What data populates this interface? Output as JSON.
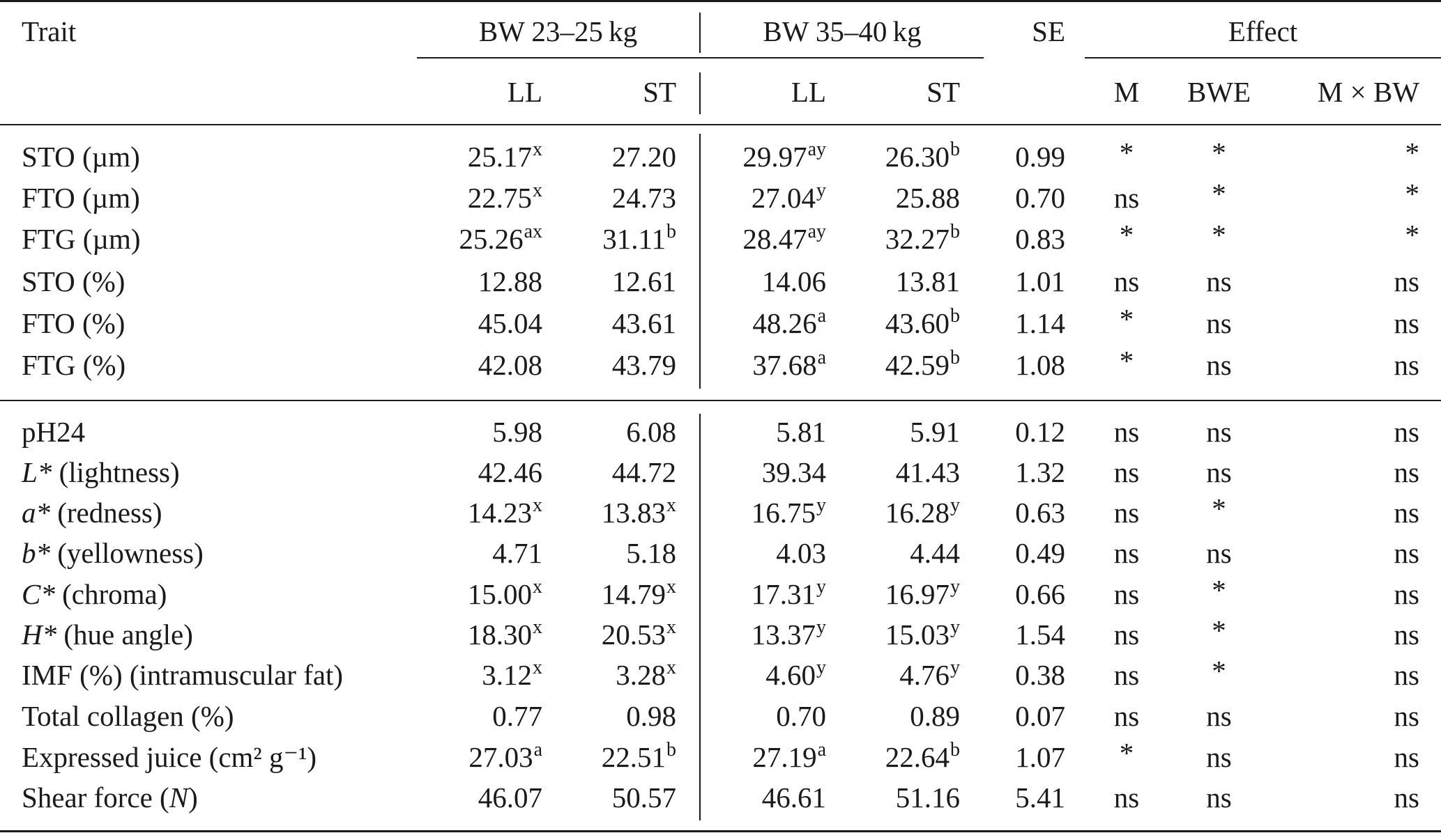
{
  "header": {
    "trait": "Trait",
    "group1": "BW 23–25 kg",
    "group2": "BW 35–40 kg",
    "se": "SE",
    "effect": "Effect",
    "sub": [
      "LL",
      "ST",
      "LL",
      "ST"
    ],
    "effects": [
      "M",
      "BWE",
      "M × BW"
    ]
  },
  "section1": [
    {
      "t": "STO (µm)",
      "ti": "",
      "tr": "",
      "v": [
        [
          "25.17",
          "x"
        ],
        [
          "27.20",
          ""
        ],
        [
          "29.97",
          "ay"
        ],
        [
          "26.30",
          "b"
        ]
      ],
      "se": "0.99",
      "e": [
        "*",
        "*",
        "*"
      ]
    },
    {
      "t": "FTO (µm)",
      "ti": "",
      "tr": "",
      "v": [
        [
          "22.75",
          "x"
        ],
        [
          "24.73",
          ""
        ],
        [
          "27.04",
          "y"
        ],
        [
          "25.88",
          ""
        ]
      ],
      "se": "0.70",
      "e": [
        "ns",
        "*",
        "*"
      ]
    },
    {
      "t": "FTG (µm)",
      "ti": "",
      "tr": "",
      "v": [
        [
          "25.26",
          "ax"
        ],
        [
          "31.11",
          "b"
        ],
        [
          "28.47",
          "ay"
        ],
        [
          "32.27",
          "b"
        ]
      ],
      "se": "0.83",
      "e": [
        "*",
        "*",
        "*"
      ]
    },
    {
      "t": "STO (%)",
      "ti": "",
      "tr": "",
      "v": [
        [
          "12.88",
          ""
        ],
        [
          "12.61",
          ""
        ],
        [
          "14.06",
          ""
        ],
        [
          "13.81",
          ""
        ]
      ],
      "se": "1.01",
      "e": [
        "ns",
        "ns",
        "ns"
      ]
    },
    {
      "t": "FTO (%)",
      "ti": "",
      "tr": "",
      "v": [
        [
          "45.04",
          ""
        ],
        [
          "43.61",
          ""
        ],
        [
          "48.26",
          "a"
        ],
        [
          "43.60",
          "b"
        ]
      ],
      "se": "1.14",
      "e": [
        "*",
        "ns",
        "ns"
      ]
    },
    {
      "t": "FTG (%)",
      "ti": "",
      "tr": "",
      "v": [
        [
          "42.08",
          ""
        ],
        [
          "43.79",
          ""
        ],
        [
          "37.68",
          "a"
        ],
        [
          "42.59",
          "b"
        ]
      ],
      "se": "1.08",
      "e": [
        "*",
        "ns",
        "ns"
      ]
    }
  ],
  "section2": [
    {
      "t": "pH24",
      "ti": "",
      "tr": "",
      "v": [
        [
          "5.98",
          ""
        ],
        [
          "6.08",
          ""
        ],
        [
          "5.81",
          ""
        ],
        [
          "5.91",
          ""
        ]
      ],
      "se": "0.12",
      "e": [
        "ns",
        "ns",
        "ns"
      ]
    },
    {
      "t": "",
      "ti": "L*",
      "tr": " (lightness)",
      "v": [
        [
          "42.46",
          ""
        ],
        [
          "44.72",
          ""
        ],
        [
          "39.34",
          ""
        ],
        [
          "41.43",
          ""
        ]
      ],
      "se": "1.32",
      "e": [
        "ns",
        "ns",
        "ns"
      ]
    },
    {
      "t": "",
      "ti": "a*",
      "tr": " (redness)",
      "v": [
        [
          "14.23",
          "x"
        ],
        [
          "13.83",
          "x"
        ],
        [
          "16.75",
          "y"
        ],
        [
          "16.28",
          "y"
        ]
      ],
      "se": "0.63",
      "e": [
        "ns",
        "*",
        "ns"
      ]
    },
    {
      "t": "",
      "ti": "b*",
      "tr": " (yellowness)",
      "v": [
        [
          "4.71",
          ""
        ],
        [
          "5.18",
          ""
        ],
        [
          "4.03",
          ""
        ],
        [
          "4.44",
          ""
        ]
      ],
      "se": "0.49",
      "e": [
        "ns",
        "ns",
        "ns"
      ]
    },
    {
      "t": "",
      "ti": "C*",
      "tr": " (chroma)",
      "v": [
        [
          "15.00",
          "x"
        ],
        [
          "14.79",
          "x"
        ],
        [
          "17.31",
          "y"
        ],
        [
          "16.97",
          "y"
        ]
      ],
      "se": "0.66",
      "e": [
        "ns",
        "*",
        "ns"
      ]
    },
    {
      "t": "",
      "ti": "H*",
      "tr": " (hue angle)",
      "v": [
        [
          "18.30",
          "x"
        ],
        [
          "20.53",
          "x"
        ],
        [
          "13.37",
          "y"
        ],
        [
          "15.03",
          "y"
        ]
      ],
      "se": "1.54",
      "e": [
        "ns",
        "*",
        "ns"
      ]
    },
    {
      "t": "IMF (%) (intramuscular fat)",
      "ti": "",
      "tr": "",
      "v": [
        [
          "3.12",
          "x"
        ],
        [
          "3.28",
          "x"
        ],
        [
          "4.60",
          "y"
        ],
        [
          "4.76",
          "y"
        ]
      ],
      "se": "0.38",
      "e": [
        "ns",
        "*",
        "ns"
      ]
    },
    {
      "t": "Total collagen (%)",
      "ti": "",
      "tr": "",
      "v": [
        [
          "0.77",
          ""
        ],
        [
          "0.98",
          ""
        ],
        [
          "0.70",
          ""
        ],
        [
          "0.89",
          ""
        ]
      ],
      "se": "0.07",
      "e": [
        "ns",
        "ns",
        "ns"
      ]
    },
    {
      "t": "Expressed juice (cm² g⁻¹)",
      "ti": "",
      "tr": "",
      "v": [
        [
          "27.03",
          "a"
        ],
        [
          "22.51",
          "b"
        ],
        [
          "27.19",
          "a"
        ],
        [
          "22.64",
          "b"
        ]
      ],
      "se": "1.07",
      "e": [
        "*",
        "ns",
        "ns"
      ]
    },
    {
      "t": "Shear force (",
      "ti": "N",
      "tr": ")",
      "v": [
        [
          "46.07",
          ""
        ],
        [
          "50.57",
          ""
        ],
        [
          "46.61",
          ""
        ],
        [
          "51.16",
          ""
        ]
      ],
      "se": "5.41",
      "e": [
        "ns",
        "ns",
        "ns"
      ]
    }
  ]
}
